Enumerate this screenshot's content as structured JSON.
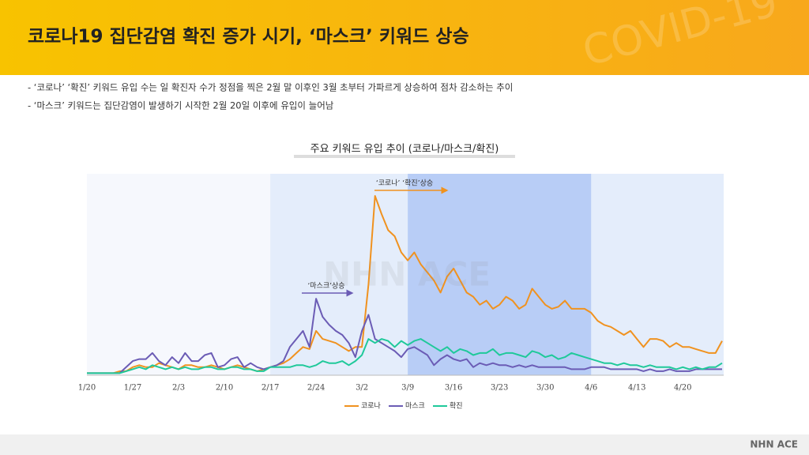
{
  "header": {
    "title": "코로나19 집단감염 확진 증가 시기, ‘마스크’ 키워드 상승",
    "watermark": "COVID-19"
  },
  "notes": [
    "- ‘코로나’ ‘확진’ 키워드 유입 수는 일 확진자 수가 정점을 찍은 2월 말 이후인 3월 초부터 가파르게 상승하여 점차 감소하는 추이",
    "- ‘마스크’ 키워드는 집단감염이 발생하기 시작한 2월 20일 이후에 유입이 늘어남"
  ],
  "chart_data": {
    "type": "line",
    "title": "주요 키워드 유입 추이 (코로나/마스크/확진)",
    "categories": [
      "1/20",
      null,
      null,
      null,
      null,
      null,
      null,
      "1/27",
      null,
      null,
      null,
      null,
      null,
      null,
      "2/3",
      null,
      null,
      null,
      null,
      null,
      null,
      "2/10",
      null,
      null,
      null,
      null,
      null,
      null,
      "2/17",
      null,
      null,
      null,
      null,
      null,
      null,
      "2/24",
      null,
      null,
      null,
      null,
      null,
      null,
      "3/2",
      null,
      null,
      null,
      null,
      null,
      null,
      "3/9",
      null,
      null,
      null,
      null,
      null,
      null,
      "3/16",
      null,
      null,
      null,
      null,
      null,
      null,
      "3/23",
      null,
      null,
      null,
      null,
      null,
      null,
      "3/30",
      null,
      null,
      null,
      null,
      null,
      null,
      "4/6",
      null,
      null,
      null,
      null,
      null,
      null,
      "4/13",
      null,
      null,
      null,
      null,
      null,
      null,
      "4/20",
      null,
      null,
      null,
      null,
      null,
      null
    ],
    "series": [
      {
        "name": "코로나",
        "color": "#f0921f",
        "values": [
          1,
          1,
          1,
          1,
          1,
          2,
          2,
          4,
          5,
          4,
          4,
          6,
          5,
          4,
          3,
          5,
          5,
          4,
          4,
          5,
          4,
          3,
          4,
          5,
          4,
          3,
          2,
          3,
          4,
          5,
          6,
          8,
          11,
          14,
          13,
          22,
          18,
          17,
          16,
          14,
          12,
          14,
          14,
          45,
          89,
          80,
          72,
          69,
          61,
          57,
          61,
          55,
          51,
          47,
          41,
          49,
          53,
          47,
          41,
          39,
          35,
          37,
          33,
          35,
          39,
          37,
          33,
          35,
          43,
          39,
          35,
          33,
          34,
          37,
          33,
          33,
          33,
          31,
          27,
          25,
          24,
          22,
          20,
          22,
          18,
          14,
          18,
          18,
          17,
          14,
          16,
          14,
          14,
          13,
          12,
          11,
          11,
          17
        ]
      },
      {
        "name": "마스크",
        "color": "#6b5cb5",
        "values": [
          1,
          1,
          1,
          1,
          1,
          1,
          4,
          7,
          8,
          8,
          11,
          7,
          5,
          9,
          6,
          11,
          7,
          7,
          10,
          11,
          4,
          5,
          8,
          9,
          4,
          6,
          4,
          3,
          4,
          5,
          7,
          14,
          18,
          22,
          14,
          38,
          29,
          25,
          22,
          20,
          16,
          9,
          22,
          30,
          18,
          16,
          14,
          12,
          9,
          13,
          14,
          12,
          10,
          5,
          8,
          10,
          8,
          7,
          8,
          4,
          6,
          5,
          6,
          5,
          5,
          4,
          5,
          4,
          5,
          4,
          4,
          4,
          4,
          4,
          3,
          3,
          3,
          4,
          4,
          4,
          3,
          3,
          3,
          3,
          3,
          2,
          3,
          2,
          2,
          3,
          2,
          2,
          2,
          3,
          3,
          3,
          3,
          3
        ]
      },
      {
        "name": "확진",
        "color": "#1fc99a",
        "values": [
          1,
          1,
          1,
          1,
          1,
          1,
          2,
          3,
          4,
          3,
          5,
          4,
          3,
          4,
          3,
          4,
          3,
          3,
          4,
          4,
          3,
          3,
          4,
          4,
          3,
          3,
          2,
          2,
          4,
          4,
          4,
          4,
          5,
          5,
          4,
          5,
          7,
          6,
          6,
          7,
          5,
          7,
          10,
          18,
          16,
          18,
          17,
          14,
          17,
          15,
          17,
          18,
          16,
          14,
          12,
          14,
          11,
          13,
          12,
          10,
          11,
          11,
          13,
          10,
          11,
          11,
          10,
          9,
          12,
          11,
          9,
          10,
          8,
          9,
          11,
          10,
          9,
          8,
          7,
          6,
          6,
          5,
          6,
          5,
          5,
          4,
          5,
          4,
          4,
          4,
          3,
          4,
          3,
          4,
          3,
          4,
          4,
          6
        ]
      }
    ],
    "ylim": [
      0,
      100
    ],
    "highlights": [
      {
        "start": "2/17",
        "color": "#e4edfb"
      },
      {
        "start": "3/9",
        "end": "4/6",
        "color": "#b8cdf6"
      }
    ],
    "annotations": [
      "‘마스크’상승",
      "‘코로나’ ‘확진’상승"
    ],
    "legend": "bottom"
  },
  "footer": {
    "logo": "NHN ACE"
  }
}
